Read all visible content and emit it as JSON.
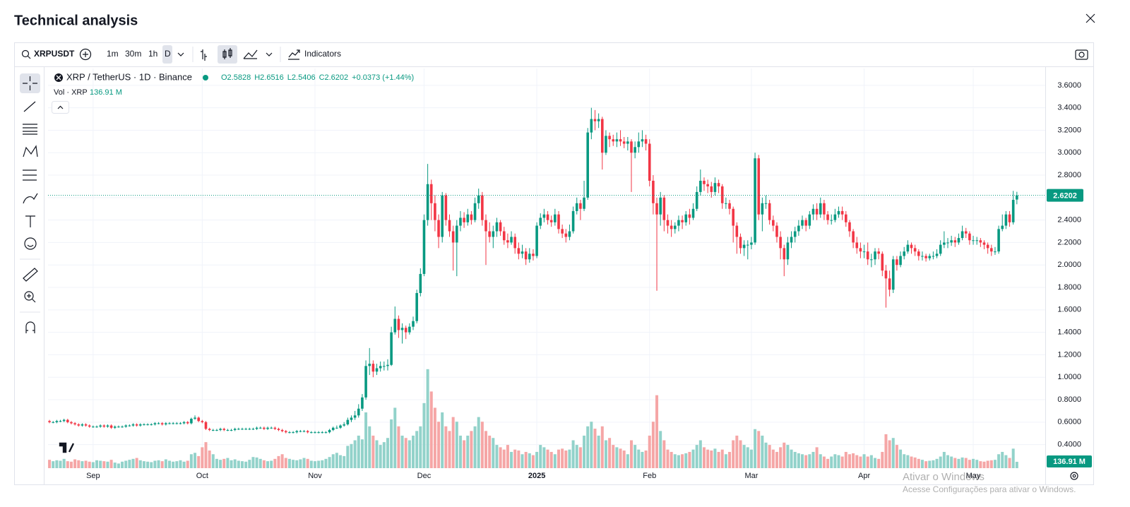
{
  "ui": {
    "title": "Technical analysis",
    "symbol": "XRPUSDT",
    "intervals": [
      "1m",
      "30m",
      "1h",
      "D"
    ],
    "indicators": "Indicators",
    "watermark": [
      "Ativar o Windows",
      "Acesse Configurações para ativar o Windows."
    ]
  },
  "chart_data": {
    "type": "candlestick",
    "title": "XRP / TetherUS · 1D · Binance",
    "ohlc_labels": [
      "O2.5828",
      "H2.6516",
      "L2.5406",
      "C2.6202"
    ],
    "change_label": "+0.0373 (+1.44%)",
    "volume_title": "Vol · XRP",
    "volume_label": "136.91 M",
    "last_price_label": "2.6202",
    "up_color": "#089981",
    "down_color": "#f23645",
    "volume_up_color": "#92d2ca",
    "volume_down_color": "#f5a6a6",
    "grid": true,
    "xlim": [
      -0.4,
      273.8
    ],
    "xticks": [
      {
        "value": 12,
        "label": "Sep"
      },
      {
        "value": 42,
        "label": "Oct"
      },
      {
        "value": 73,
        "label": "Nov"
      },
      {
        "value": 103,
        "label": "Dec"
      },
      {
        "value": 134,
        "label": "2025"
      },
      {
        "value": 165,
        "label": "Feb"
      },
      {
        "value": 193,
        "label": "Mar"
      },
      {
        "value": 224,
        "label": "Apr"
      },
      {
        "value": 254,
        "label": "May"
      }
    ],
    "ylim": [
      0.19,
      3.75
    ],
    "yticks": [
      {
        "value": 0.4,
        "label": "0.4000"
      },
      {
        "value": 0.6,
        "label": "0.6000"
      },
      {
        "value": 0.8,
        "label": "0.8000"
      },
      {
        "value": 1,
        "label": "1.0000"
      },
      {
        "value": 1.2,
        "label": "1.2000"
      },
      {
        "value": 1.4,
        "label": "1.4000"
      },
      {
        "value": 1.6,
        "label": "1.6000"
      },
      {
        "value": 1.8,
        "label": "1.8000"
      },
      {
        "value": 2,
        "label": "2.0000"
      },
      {
        "value": 2.2,
        "label": "2.2000"
      },
      {
        "value": 2.4,
        "label": "2.4000"
      },
      {
        "value": 2.6,
        "label": "2.6000"
      },
      {
        "value": 2.8,
        "label": "2.8000"
      },
      {
        "value": 3,
        "label": "3.0000"
      },
      {
        "value": 3.2,
        "label": "3.2000"
      },
      {
        "value": 3.4,
        "label": "3.4000"
      },
      {
        "value": 3.6,
        "label": "3.6000"
      }
    ],
    "volume_ylim": [
      0,
      8600
    ],
    "open": [
      0.61,
      0.6,
      0.6,
      0.61,
      0.61,
      0.62,
      0.6,
      0.59,
      0.58,
      0.57,
      0.58,
      0.57,
      0.56,
      0.56,
      0.56,
      0.57,
      0.56,
      0.57,
      0.55,
      0.56,
      0.56,
      0.56,
      0.57,
      0.57,
      0.58,
      0.57,
      0.58,
      0.58,
      0.58,
      0.58,
      0.59,
      0.59,
      0.58,
      0.59,
      0.59,
      0.59,
      0.59,
      0.59,
      0.6,
      0.59,
      0.63,
      0.64,
      0.61,
      0.6,
      0.54,
      0.53,
      0.53,
      0.53,
      0.54,
      0.53,
      0.53,
      0.53,
      0.54,
      0.54,
      0.54,
      0.54,
      0.54,
      0.54,
      0.55,
      0.55,
      0.54,
      0.55,
      0.55,
      0.54,
      0.53,
      0.52,
      0.51,
      0.51,
      0.51,
      0.52,
      0.52,
      0.52,
      0.51,
      0.51,
      0.51,
      0.51,
      0.51,
      0.51,
      0.53,
      0.55,
      0.55,
      0.57,
      0.58,
      0.62,
      0.64,
      0.66,
      0.72,
      0.82,
      1.1,
      1.12,
      1.05,
      1.08,
      1.1,
      1.1,
      1.11,
      1.4,
      1.52,
      1.42,
      1.44,
      1.4,
      1.45,
      1.5,
      1.75,
      1.92,
      2.4,
      2.72,
      2.55,
      2.4,
      2.25,
      2.62,
      2.4,
      2.3,
      2.2,
      2.35,
      2.42,
      2.38,
      2.45,
      2.4,
      2.55,
      2.62,
      2.4,
      2.3,
      2.25,
      2.3,
      2.38,
      2.3,
      2.22,
      2.2,
      2.25,
      2.15,
      2.1,
      2.12,
      2.05,
      2.1,
      2.08,
      2.35,
      2.42,
      2.45,
      2.4,
      2.38,
      2.45,
      2.32,
      2.28,
      2.25,
      2.3,
      2.48,
      2.55,
      2.5,
      2.6,
      3.18,
      3.3,
      3.28,
      3.3,
      3.0,
      3.15,
      3.12,
      3.1,
      3.12,
      3.1,
      3.08,
      3.1,
      3.0,
      3.05,
      3.1,
      3.12,
      3.08,
      2.75,
      2.55,
      2.45,
      2.6,
      2.4,
      2.35,
      2.32,
      2.35,
      2.4,
      2.38,
      2.45,
      2.42,
      2.5,
      2.65,
      2.75,
      2.72,
      2.7,
      2.65,
      2.73,
      2.7,
      2.55,
      2.55,
      2.5,
      2.35,
      2.25,
      2.15,
      2.18,
      2.18,
      2.2,
      2.95,
      2.45,
      2.55,
      2.55,
      2.4,
      2.35,
      2.25,
      2.15,
      2.05,
      2.2,
      2.25,
      2.3,
      2.35,
      2.4,
      2.35,
      2.45,
      2.5,
      2.45,
      2.55,
      2.45,
      2.4,
      2.4,
      2.45,
      2.48,
      2.45,
      2.38,
      2.3,
      2.2,
      2.15,
      2.12,
      2.12,
      2.05,
      2.05,
      2.12,
      2.1,
      1.95,
      1.88,
      1.78,
      2.05,
      2.0,
      2.08,
      2.12,
      2.18,
      2.15,
      2.12,
      2.08,
      2.08,
      2.06,
      2.08,
      2.08,
      2.1,
      2.18,
      2.2,
      2.2,
      2.22,
      2.2,
      2.24,
      2.3,
      2.28,
      2.22,
      2.22,
      2.22,
      2.2,
      2.18,
      2.15,
      2.12,
      2.12,
      2.32,
      2.35,
      2.45,
      2.38,
      2.5828
    ],
    "high": [
      0.62,
      0.61,
      0.62,
      0.62,
      0.63,
      0.63,
      0.61,
      0.6,
      0.59,
      0.59,
      0.59,
      0.58,
      0.57,
      0.57,
      0.58,
      0.58,
      0.58,
      0.58,
      0.57,
      0.57,
      0.57,
      0.58,
      0.58,
      0.59,
      0.59,
      0.59,
      0.59,
      0.59,
      0.59,
      0.6,
      0.6,
      0.6,
      0.6,
      0.6,
      0.6,
      0.6,
      0.6,
      0.61,
      0.61,
      0.64,
      0.66,
      0.65,
      0.62,
      0.61,
      0.55,
      0.54,
      0.54,
      0.55,
      0.55,
      0.54,
      0.54,
      0.55,
      0.55,
      0.55,
      0.55,
      0.55,
      0.55,
      0.56,
      0.56,
      0.56,
      0.56,
      0.56,
      0.56,
      0.55,
      0.54,
      0.53,
      0.52,
      0.52,
      0.53,
      0.53,
      0.53,
      0.53,
      0.52,
      0.52,
      0.52,
      0.52,
      0.52,
      0.54,
      0.56,
      0.57,
      0.58,
      0.6,
      0.64,
      0.66,
      0.7,
      0.76,
      0.85,
      1.15,
      1.26,
      1.15,
      1.12,
      1.14,
      1.14,
      1.16,
      1.45,
      1.63,
      1.55,
      1.48,
      1.46,
      1.48,
      1.54,
      1.78,
      1.97,
      2.45,
      2.9,
      2.76,
      2.62,
      2.45,
      2.65,
      2.64,
      2.45,
      2.35,
      2.4,
      2.48,
      2.47,
      2.5,
      2.48,
      2.6,
      2.68,
      2.65,
      2.45,
      2.38,
      2.35,
      2.42,
      2.4,
      2.34,
      2.28,
      2.3,
      2.28,
      2.2,
      2.18,
      2.15,
      2.15,
      2.14,
      2.38,
      2.46,
      2.5,
      2.48,
      2.44,
      2.5,
      2.48,
      2.36,
      2.32,
      2.36,
      2.52,
      2.6,
      2.58,
      2.75,
      3.22,
      3.4,
      3.38,
      3.35,
      3.32,
      3.2,
      3.18,
      3.16,
      3.18,
      3.2,
      3.14,
      3.14,
      3.12,
      3.1,
      3.18,
      3.2,
      3.16,
      3.12,
      2.8,
      2.6,
      2.65,
      2.62,
      2.45,
      2.4,
      2.38,
      2.44,
      2.44,
      2.48,
      2.5,
      2.55,
      2.7,
      2.85,
      2.78,
      2.76,
      2.74,
      2.78,
      2.76,
      2.72,
      2.6,
      2.58,
      2.52,
      2.38,
      2.28,
      2.22,
      2.22,
      2.25,
      3.0,
      2.98,
      2.6,
      2.62,
      2.58,
      2.44,
      2.38,
      2.3,
      2.18,
      2.25,
      2.3,
      2.34,
      2.4,
      2.44,
      2.42,
      2.48,
      2.54,
      2.55,
      2.6,
      2.58,
      2.48,
      2.45,
      2.5,
      2.52,
      2.52,
      2.48,
      2.4,
      2.32,
      2.25,
      2.2,
      2.18,
      2.2,
      2.1,
      2.15,
      2.15,
      2.12,
      2.0,
      1.95,
      2.08,
      2.08,
      2.12,
      2.16,
      2.22,
      2.2,
      2.18,
      2.14,
      2.12,
      2.1,
      2.1,
      2.12,
      2.14,
      2.22,
      2.3,
      2.24,
      2.26,
      2.25,
      2.28,
      2.35,
      2.33,
      2.3,
      2.26,
      2.25,
      2.24,
      2.22,
      2.2,
      2.18,
      2.16,
      2.35,
      2.45,
      2.48,
      2.48,
      2.66,
      2.6516
    ],
    "low": [
      0.59,
      0.59,
      0.59,
      0.6,
      0.6,
      0.59,
      0.58,
      0.57,
      0.56,
      0.56,
      0.56,
      0.55,
      0.55,
      0.55,
      0.55,
      0.55,
      0.55,
      0.54,
      0.54,
      0.55,
      0.55,
      0.55,
      0.56,
      0.56,
      0.56,
      0.56,
      0.57,
      0.57,
      0.57,
      0.57,
      0.58,
      0.57,
      0.57,
      0.58,
      0.58,
      0.58,
      0.58,
      0.58,
      0.58,
      0.58,
      0.62,
      0.6,
      0.59,
      0.53,
      0.52,
      0.52,
      0.52,
      0.52,
      0.52,
      0.52,
      0.52,
      0.52,
      0.53,
      0.53,
      0.53,
      0.53,
      0.53,
      0.53,
      0.54,
      0.53,
      0.53,
      0.54,
      0.53,
      0.52,
      0.51,
      0.5,
      0.5,
      0.5,
      0.5,
      0.51,
      0.51,
      0.5,
      0.5,
      0.5,
      0.5,
      0.5,
      0.5,
      0.5,
      0.52,
      0.54,
      0.54,
      0.56,
      0.57,
      0.6,
      0.62,
      0.64,
      0.7,
      0.8,
      1.02,
      1.0,
      1.02,
      1.05,
      1.06,
      1.06,
      1.1,
      1.38,
      1.35,
      1.3,
      1.34,
      1.38,
      1.42,
      1.48,
      1.72,
      1.9,
      2.35,
      2.4,
      2.3,
      2.15,
      2.2,
      2.35,
      2.25,
      1.95,
      1.9,
      2.3,
      2.33,
      2.35,
      2.36,
      2.38,
      2.5,
      2.35,
      2.0,
      2.2,
      2.15,
      2.25,
      2.26,
      2.18,
      2.15,
      2.18,
      2.1,
      2.05,
      2.06,
      2.0,
      2.02,
      2.04,
      2.06,
      2.32,
      2.38,
      2.36,
      2.34,
      2.35,
      2.28,
      2.24,
      2.2,
      2.22,
      2.28,
      2.45,
      2.4,
      2.48,
      2.58,
      3.12,
      3.2,
      3.22,
      2.85,
      2.98,
      3.05,
      3.06,
      3.05,
      3.06,
      3.04,
      3.02,
      2.65,
      2.95,
      3.0,
      3.05,
      3.02,
      2.7,
      2.45,
      1.77,
      2.35,
      2.3,
      2.28,
      2.25,
      2.28,
      2.3,
      2.32,
      2.35,
      2.36,
      2.4,
      2.48,
      2.62,
      2.66,
      2.64,
      2.6,
      2.62,
      2.64,
      2.5,
      2.5,
      2.45,
      2.2,
      2.1,
      2.1,
      2.08,
      2.05,
      2.14,
      2.18,
      2.4,
      2.3,
      2.5,
      2.36,
      2.3,
      2.2,
      2.05,
      1.9,
      2.0,
      2.15,
      2.2,
      2.26,
      2.32,
      2.3,
      2.32,
      2.4,
      2.4,
      2.42,
      2.4,
      2.36,
      2.36,
      2.38,
      2.42,
      2.4,
      2.34,
      2.25,
      2.15,
      2.1,
      2.06,
      2.06,
      2.0,
      1.98,
      2.0,
      2.05,
      1.9,
      1.62,
      1.72,
      1.75,
      1.95,
      1.98,
      2.05,
      2.1,
      2.1,
      2.08,
      2.04,
      2.04,
      2.03,
      2.04,
      2.05,
      2.06,
      2.08,
      2.15,
      2.15,
      2.17,
      2.16,
      2.18,
      2.22,
      2.24,
      2.18,
      2.18,
      2.18,
      2.16,
      2.14,
      2.1,
      2.08,
      2.09,
      2.1,
      2.3,
      2.32,
      2.34,
      2.36,
      2.5406
    ],
    "close": [
      0.6,
      0.6,
      0.61,
      0.61,
      0.62,
      0.6,
      0.59,
      0.58,
      0.57,
      0.58,
      0.57,
      0.56,
      0.56,
      0.56,
      0.57,
      0.56,
      0.57,
      0.55,
      0.56,
      0.56,
      0.56,
      0.57,
      0.57,
      0.58,
      0.57,
      0.58,
      0.58,
      0.58,
      0.58,
      0.59,
      0.59,
      0.58,
      0.59,
      0.59,
      0.59,
      0.59,
      0.59,
      0.6,
      0.59,
      0.63,
      0.64,
      0.61,
      0.6,
      0.54,
      0.53,
      0.53,
      0.53,
      0.54,
      0.53,
      0.53,
      0.53,
      0.54,
      0.54,
      0.54,
      0.54,
      0.54,
      0.54,
      0.55,
      0.55,
      0.54,
      0.55,
      0.55,
      0.54,
      0.53,
      0.52,
      0.51,
      0.51,
      0.51,
      0.52,
      0.52,
      0.52,
      0.51,
      0.51,
      0.51,
      0.51,
      0.51,
      0.51,
      0.53,
      0.55,
      0.55,
      0.57,
      0.58,
      0.62,
      0.64,
      0.66,
      0.72,
      0.82,
      1.1,
      1.12,
      1.05,
      1.08,
      1.1,
      1.1,
      1.11,
      1.4,
      1.52,
      1.42,
      1.44,
      1.4,
      1.45,
      1.5,
      1.75,
      1.92,
      2.4,
      2.72,
      2.55,
      2.4,
      2.25,
      2.62,
      2.4,
      2.3,
      2.2,
      2.35,
      2.42,
      2.38,
      2.45,
      2.4,
      2.55,
      2.62,
      2.4,
      2.3,
      2.25,
      2.3,
      2.38,
      2.3,
      2.22,
      2.2,
      2.25,
      2.15,
      2.1,
      2.12,
      2.05,
      2.1,
      2.08,
      2.35,
      2.42,
      2.45,
      2.4,
      2.38,
      2.45,
      2.32,
      2.28,
      2.25,
      2.3,
      2.48,
      2.55,
      2.5,
      2.6,
      3.18,
      3.3,
      3.28,
      3.3,
      3.0,
      3.15,
      3.12,
      3.1,
      3.12,
      3.1,
      3.08,
      3.1,
      3.0,
      3.05,
      3.1,
      3.12,
      3.08,
      2.75,
      2.55,
      2.45,
      2.6,
      2.4,
      2.35,
      2.32,
      2.35,
      2.4,
      2.38,
      2.45,
      2.42,
      2.5,
      2.65,
      2.75,
      2.72,
      2.7,
      2.65,
      2.73,
      2.7,
      2.55,
      2.55,
      2.5,
      2.35,
      2.25,
      2.15,
      2.18,
      2.18,
      2.2,
      2.95,
      2.45,
      2.55,
      2.55,
      2.4,
      2.35,
      2.25,
      2.15,
      2.05,
      2.2,
      2.25,
      2.3,
      2.35,
      2.4,
      2.35,
      2.45,
      2.5,
      2.45,
      2.55,
      2.45,
      2.4,
      2.4,
      2.45,
      2.48,
      2.45,
      2.38,
      2.3,
      2.2,
      2.15,
      2.12,
      2.12,
      2.05,
      2.05,
      2.12,
      2.1,
      1.95,
      1.88,
      1.78,
      2.05,
      2.0,
      2.08,
      2.12,
      2.18,
      2.15,
      2.12,
      2.08,
      2.08,
      2.06,
      2.08,
      2.08,
      2.1,
      2.18,
      2.2,
      2.2,
      2.22,
      2.2,
      2.24,
      2.3,
      2.28,
      2.22,
      2.22,
      2.22,
      2.2,
      2.18,
      2.15,
      2.12,
      2.12,
      2.32,
      2.35,
      2.45,
      2.38,
      2.58,
      2.6202
    ],
    "volume": [
      180,
      150,
      170,
      160,
      200,
      150,
      140,
      190,
      170,
      150,
      160,
      140,
      130,
      170,
      160,
      150,
      140,
      180,
      120,
      100,
      140,
      160,
      180,
      200,
      220,
      170,
      150,
      140,
      130,
      160,
      170,
      150,
      190,
      160,
      140,
      150,
      170,
      140,
      160,
      300,
      330,
      260,
      450,
      560,
      380,
      300,
      200,
      180,
      200,
      220,
      170,
      190,
      160,
      150,
      140,
      180,
      240,
      230,
      200,
      170,
      150,
      160,
      200,
      260,
      300,
      220,
      200,
      180,
      170,
      190,
      220,
      200,
      160,
      150,
      160,
      170,
      200,
      240,
      300,
      330,
      280,
      260,
      480,
      520,
      600,
      700,
      620,
      1200,
      900,
      700,
      600,
      500,
      560,
      650,
      1050,
      1300,
      900,
      700,
      650,
      600,
      700,
      800,
      900,
      1400,
      2130,
      1650,
      1300,
      1000,
      1200,
      900,
      800,
      1100,
      1000,
      700,
      600,
      700,
      800,
      900,
      1100,
      1000,
      800,
      700,
      650,
      500,
      450,
      400,
      500,
      350,
      400,
      380,
      300,
      350,
      320,
      280,
      350,
      500,
      450,
      400,
      350,
      300,
      400,
      420,
      380,
      400,
      600,
      500,
      450,
      700,
      900,
      1000,
      850,
      700,
      900,
      600,
      650,
      500,
      450,
      420,
      380,
      300,
      600,
      500,
      400,
      350,
      380,
      700,
      1000,
      1570,
      800,
      600,
      400,
      350,
      300,
      280,
      300,
      320,
      350,
      400,
      500,
      600,
      450,
      400,
      380,
      420,
      350,
      400,
      300,
      350,
      600,
      700,
      600,
      500,
      450,
      400,
      840,
      800,
      700,
      550,
      500,
      400,
      350,
      450,
      550,
      500,
      400,
      350,
      320,
      300,
      280,
      300,
      350,
      450,
      300,
      250,
      200,
      250,
      300,
      280,
      250,
      350,
      300,
      320,
      280,
      250,
      300,
      250,
      280,
      220,
      200,
      350,
      730,
      600,
      650,
      500,
      400,
      300,
      280,
      250,
      230,
      200,
      180,
      150,
      160,
      170,
      200,
      250,
      350,
      280,
      250,
      220,
      200,
      230,
      220,
      180,
      200,
      180,
      150,
      140,
      160,
      170,
      180,
      300,
      350,
      280,
      220,
      420,
      136.91
    ]
  }
}
